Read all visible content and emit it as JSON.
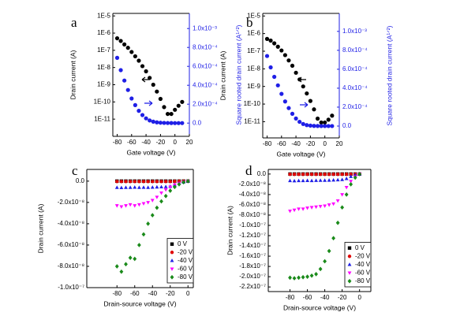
{
  "chart_data": [
    {
      "type": "scatter",
      "panel_label": "a",
      "xlabel": "Gate voltage (V)",
      "ylabel": "Drain current (A)",
      "y2label": "Square rooted drain current (A¹ᐟ²)",
      "ylog": true,
      "xlim": [
        -86,
        20
      ],
      "xticks": [
        -80,
        -60,
        -40,
        -20,
        0,
        20
      ],
      "ylim": [
        1e-12,
        1.4e-05
      ],
      "yticks": [
        {
          "value": 1e-11,
          "label": "1E-11"
        },
        {
          "value": 1e-10,
          "label": "1E-10"
        },
        {
          "value": 1e-09,
          "label": "1E-9"
        },
        {
          "value": 1e-08,
          "label": "1E-8"
        },
        {
          "value": 1e-07,
          "label": "1E-7"
        },
        {
          "value": 1e-06,
          "label": "1E-6"
        },
        {
          "value": 1e-05,
          "label": "1E-5"
        }
      ],
      "y2lim": [
        -0.00014,
        0.00116
      ],
      "y2color": "#1f1fe6",
      "y2ticks": [
        {
          "value": 0,
          "label": "0.0"
        },
        {
          "value": 0.0002,
          "label": "2.0x10⁻⁴"
        },
        {
          "value": 0.0004,
          "label": "4.0x10⁻⁴"
        },
        {
          "value": 0.0006,
          "label": "6.0x10⁻⁴"
        },
        {
          "value": 0.0008,
          "label": "8.0x10⁻⁴"
        },
        {
          "value": 0.001,
          "label": "1.0x10⁻³"
        }
      ],
      "x": [
        -80,
        -75,
        -70,
        -65,
        -60,
        -55,
        -50,
        -45,
        -40,
        -35,
        -30,
        -25,
        -20,
        -15,
        -10,
        -5,
        0,
        5,
        10
      ],
      "series": [
        {
          "color": "#000000",
          "marker": "circle",
          "values": [
            5e-07,
            3.5e-07,
            2.2e-07,
            1.4e-07,
            8e-08,
            4.5e-08,
            2.5e-08,
            1.2e-08,
            6e-09,
            2.5e-09,
            1e-09,
            4e-10,
            1.5e-10,
            5e-11,
            2e-11,
            2e-11,
            3.5e-11,
            6e-11,
            1e-10
          ]
        },
        {
          "color": "#1f1fe6",
          "marker": "circle",
          "axis": "y2",
          "values": [
            0.00069,
            0.00056,
            0.00045,
            0.00035,
            0.00026,
            0.00019,
            0.00013,
            8.5e-05,
            5e-05,
            2.8e-05,
            1.5e-05,
            8e-06,
            4e-06,
            2e-06,
            1e-06,
            5e-07,
            3e-07,
            2e-07,
            2e-07
          ]
        }
      ]
    },
    {
      "type": "scatter",
      "panel_label": "b",
      "xlabel": "Gate voltage (V)",
      "ylabel": "Drain current (A)",
      "y2label": "Square rooted drain current (A¹ᐟ²)",
      "ylog": true,
      "xlim": [
        -86,
        20
      ],
      "xticks": [
        -80,
        -60,
        -40,
        -20,
        0,
        20
      ],
      "ylim": [
        1.2e-12,
        1.4e-05
      ],
      "yticks": [
        {
          "value": 1e-11,
          "label": "1E-11"
        },
        {
          "value": 1e-10,
          "label": "1E-10"
        },
        {
          "value": 1e-09,
          "label": "1E-9"
        },
        {
          "value": 1e-08,
          "label": "1E-8"
        },
        {
          "value": 1e-07,
          "label": "1E-7"
        },
        {
          "value": 1e-06,
          "label": "1E-6"
        },
        {
          "value": 1e-05,
          "label": "1E-5"
        }
      ],
      "y2lim": [
        -0.000125,
        0.00119
      ],
      "y2color": "#1f1fe6",
      "y2ticks": [
        {
          "value": 0,
          "label": "0.0"
        },
        {
          "value": 0.0002,
          "label": "2.0x10⁻⁴"
        },
        {
          "value": 0.0004,
          "label": "4.0x10⁻⁴"
        },
        {
          "value": 0.0006,
          "label": "6.0x10⁻⁴"
        },
        {
          "value": 0.0008,
          "label": "8.0x10⁻⁴"
        },
        {
          "value": 0.001,
          "label": "1.0x10⁻³"
        }
      ],
      "x": [
        -80,
        -75,
        -70,
        -65,
        -60,
        -55,
        -50,
        -45,
        -40,
        -35,
        -30,
        -25,
        -20,
        -15,
        -10,
        -5,
        0,
        5,
        10
      ],
      "series": [
        {
          "color": "#000000",
          "marker": "circle",
          "values": [
            5e-07,
            4e-07,
            2.8e-07,
            1.8e-07,
            1.1e-07,
            6e-08,
            3e-08,
            1.5e-08,
            6e-09,
            2.5e-09,
            1e-09,
            4e-10,
            1.5e-10,
            5e-11,
            1.5e-11,
            9e-12,
            9e-12,
            1.3e-11,
            2.2e-11
          ]
        },
        {
          "color": "#1f1fe6",
          "marker": "circle",
          "axis": "y2",
          "values": [
            0.00074,
            0.00062,
            0.00052,
            0.00043,
            0.00034,
            0.00026,
            0.00019,
            0.00013,
            8e-05,
            4.5e-05,
            2.2e-05,
            1e-05,
            5e-06,
            2e-06,
            1e-06,
            5e-07,
            3e-07,
            2e-07,
            2e-07
          ]
        }
      ]
    },
    {
      "type": "scatter",
      "panel_label": "c",
      "xlabel": "Drain-source voltage (V)",
      "ylabel": "Drain current (A)",
      "ylog": false,
      "xlim": [
        -114,
        6
      ],
      "xticks": [
        -80,
        -60,
        -40,
        -20,
        0
      ],
      "ylim": [
        -1e-07,
        1.1e-08
      ],
      "yticks": [
        {
          "value": 0,
          "label": "0.0"
        },
        {
          "value": -2e-08,
          "label": "-2.0x10⁻⁸"
        },
        {
          "value": -4e-08,
          "label": "-4.0x10⁻⁸"
        },
        {
          "value": -6e-08,
          "label": "-6.0x10⁻⁸"
        },
        {
          "value": -8e-08,
          "label": "-8.0x10⁻⁸"
        },
        {
          "value": -1e-07,
          "label": "-1.0x10⁻⁷"
        }
      ],
      "legend": "lower right",
      "x": [
        -80,
        -75,
        -70,
        -65,
        -60,
        -55,
        -50,
        -45,
        -40,
        -35,
        -30,
        -25,
        -20,
        -15,
        -10,
        -5,
        0
      ],
      "series": [
        {
          "name": "0 V",
          "color": "#000000",
          "marker": "square",
          "values": [
            0,
            0,
            0,
            0,
            0,
            0,
            0,
            0,
            0,
            0,
            0,
            0,
            0,
            0,
            0,
            0,
            0
          ]
        },
        {
          "name": "-20 V",
          "color": "#e00000",
          "marker": "circle",
          "values": [
            -3e-10,
            -3e-10,
            -3e-10,
            -3e-10,
            -3e-10,
            -3e-10,
            -3e-10,
            -3e-10,
            -3e-10,
            -3e-10,
            -3e-10,
            -3e-10,
            -3e-10,
            -2e-10,
            -1e-10,
            -1e-10,
            0
          ]
        },
        {
          "name": "-40 V",
          "color": "#1f1fe6",
          "marker": "triangle-up",
          "values": [
            -6e-09,
            -6.2e-09,
            -6e-09,
            -6e-09,
            -5.8e-09,
            -6e-09,
            -5.9e-09,
            -6e-09,
            -5.8e-09,
            -5.6e-09,
            -5.5e-09,
            -5.3e-09,
            -5e-09,
            -3.5e-09,
            -2e-09,
            -1e-09,
            0
          ]
        },
        {
          "name": "-60 V",
          "color": "#ff00ff",
          "marker": "triangle-down",
          "values": [
            -2.3e-08,
            -2.4e-08,
            -2.3e-08,
            -2.2e-08,
            -2.3e-08,
            -2.2e-08,
            -2.1e-08,
            -2e-08,
            -1.8e-08,
            -1.5e-08,
            -1.1e-08,
            -8e-09,
            -5.5e-09,
            -3.5e-09,
            -2e-09,
            -8e-10,
            0
          ]
        },
        {
          "name": "-80 V",
          "color": "#1a8a1a",
          "marker": "diamond",
          "values": [
            -8e-08,
            -8.5e-08,
            -7.8e-08,
            -7.2e-08,
            -7.3e-08,
            -6e-08,
            -5e-08,
            -4e-08,
            -3.2e-08,
            -2.5e-08,
            -1.9e-08,
            -1.4e-08,
            -9e-09,
            -5.5e-09,
            -3e-09,
            -1e-09,
            0
          ]
        }
      ]
    },
    {
      "type": "scatter",
      "panel_label": "d",
      "xlabel": "Drain-source voltage (V)",
      "ylabel": "Drain current (A)",
      "ylog": false,
      "xlim": [
        -105,
        13
      ],
      "xticks": [
        -80,
        -60,
        -40,
        -20,
        0
      ],
      "ylim": [
        -2.29e-07,
        9e-09
      ],
      "yticks": [
        {
          "value": 0,
          "label": "0.0"
        },
        {
          "value": -2e-08,
          "label": "-2.0x10⁻⁸"
        },
        {
          "value": -4e-08,
          "label": "-4.0x10⁻⁸"
        },
        {
          "value": -6e-08,
          "label": "-6.0x10⁻⁸"
        },
        {
          "value": -8e-08,
          "label": "-8.0x10⁻⁸"
        },
        {
          "value": -1e-07,
          "label": "-1.0x10⁻⁷"
        },
        {
          "value": -1.2e-07,
          "label": "-1.2x10⁻⁷"
        },
        {
          "value": -1.4e-07,
          "label": "-1.4x10⁻⁷"
        },
        {
          "value": -1.6e-07,
          "label": "-1.6x10⁻⁷"
        },
        {
          "value": -1.8e-07,
          "label": "-1.8x10⁻⁷"
        },
        {
          "value": -2e-07,
          "label": "-2.0x10⁻⁷"
        },
        {
          "value": -2.2e-07,
          "label": "-2.2x10⁻⁷"
        }
      ],
      "legend": "lower right",
      "x": [
        -80,
        -75,
        -70,
        -65,
        -60,
        -55,
        -50,
        -45,
        -40,
        -35,
        -30,
        -25,
        -20,
        -15,
        -10,
        -5,
        0
      ],
      "series": [
        {
          "name": "0 V",
          "color": "#000000",
          "marker": "square",
          "values": [
            0,
            0,
            0,
            0,
            0,
            0,
            0,
            0,
            0,
            0,
            0,
            0,
            0,
            0,
            0,
            0,
            0
          ]
        },
        {
          "name": "-20 V",
          "color": "#e00000",
          "marker": "circle",
          "values": [
            -5e-10,
            -5e-10,
            -5e-10,
            -5e-10,
            -5e-10,
            -5e-10,
            -5e-10,
            -5e-10,
            -5e-10,
            -5e-10,
            -5e-10,
            -5e-10,
            -5e-10,
            -4e-10,
            -3e-10,
            -1e-10,
            0
          ]
        },
        {
          "name": "-40 V",
          "color": "#1f1fe6",
          "marker": "triangle-up",
          "values": [
            -1.3e-08,
            -1.35e-08,
            -1.3e-08,
            -1.3e-08,
            -1.28e-08,
            -1.3e-08,
            -1.27e-08,
            -1.25e-08,
            -1.25e-08,
            -1.22e-08,
            -1.2e-08,
            -1.15e-08,
            -1.1e-08,
            -9e-09,
            -5e-09,
            -2e-09,
            0
          ]
        },
        {
          "name": "-60 V",
          "color": "#ff00ff",
          "marker": "triangle-down",
          "values": [
            -7.2e-08,
            -7e-08,
            -6.8e-08,
            -6.8e-08,
            -6.6e-08,
            -6.5e-08,
            -6.4e-08,
            -6.3e-08,
            -6.2e-08,
            -6e-08,
            -5.8e-08,
            -5.2e-08,
            -4e-08,
            -2.6e-08,
            -1.4e-08,
            -5e-09,
            0
          ]
        },
        {
          "name": "-80 V",
          "color": "#1a8a1a",
          "marker": "diamond",
          "values": [
            -2.02e-07,
            -2.03e-07,
            -2.02e-07,
            -2.01e-07,
            -2e-07,
            -1.98e-07,
            -1.95e-07,
            -1.85e-07,
            -1.7e-07,
            -1.5e-07,
            -1.25e-07,
            -9.5e-08,
            -6.5e-08,
            -4e-08,
            -2e-08,
            -7e-09,
            0
          ]
        }
      ]
    }
  ]
}
